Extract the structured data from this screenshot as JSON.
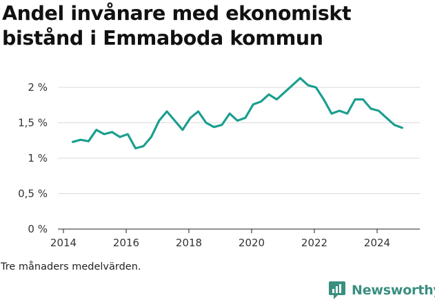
{
  "title": "Andel invånare med ekonomiskt bistånd i Emmaboda kommun",
  "footnote": "Tre månaders medelvärden.",
  "brand": {
    "name": "Newsworthy",
    "color": "#3a8f80"
  },
  "chart_data": {
    "type": "line",
    "title": "Andel invånare med ekonomiskt bistånd i Emmaboda kommun",
    "xlabel": "",
    "ylabel": "",
    "xlim": [
      2013.85,
      2025.7
    ],
    "ylim": [
      0,
      2
    ],
    "x_ticks": [
      2014,
      2016,
      2018,
      2020,
      2022,
      2024
    ],
    "x_tick_labels": [
      "2014",
      "2016",
      "2018",
      "2020",
      "2022",
      "2024"
    ],
    "y_ticks": [
      0,
      0.5,
      1,
      1.5,
      2
    ],
    "y_tick_labels": [
      "0 %",
      "0,5 %",
      "1 %",
      "1,5 %",
      "2 %"
    ],
    "grid": true,
    "line_color": "#1a9e8f",
    "series": [
      {
        "x": [
          2014.3,
          2014.55,
          2014.8,
          2015.05,
          2015.3,
          2015.55,
          2015.8,
          2016.05,
          2016.3,
          2016.55,
          2016.8,
          2017.05,
          2017.3,
          2017.55,
          2017.8,
          2018.05,
          2018.3,
          2018.55,
          2018.8,
          2019.05,
          2019.3,
          2019.55,
          2019.8,
          2020.05,
          2020.3,
          2020.55,
          2020.8,
          2021.05,
          2021.3,
          2021.55,
          2021.8,
          2022.05,
          2022.3,
          2022.55,
          2022.8,
          2023.05,
          2023.3,
          2023.55,
          2023.8,
          2024.05,
          2024.3,
          2024.55,
          2024.8
        ],
        "values": [
          1.23,
          1.26,
          1.24,
          1.4,
          1.34,
          1.37,
          1.3,
          1.34,
          1.14,
          1.17,
          1.3,
          1.53,
          1.66,
          1.53,
          1.4,
          1.57,
          1.66,
          1.5,
          1.44,
          1.47,
          1.63,
          1.53,
          1.57,
          1.76,
          1.8,
          1.9,
          1.83,
          1.93,
          2.03,
          2.13,
          2.03,
          2.0,
          1.83,
          1.63,
          1.67,
          1.63,
          1.83,
          1.83,
          1.7,
          1.67,
          1.57,
          1.47,
          1.43
        ]
      }
    ]
  }
}
